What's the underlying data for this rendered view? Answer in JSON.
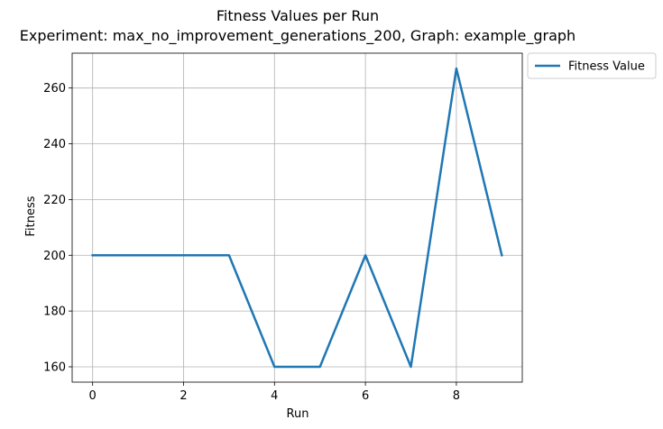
{
  "chart_data": {
    "type": "line",
    "title": "Fitness Values per Run",
    "subtitle": "Experiment: max_no_improvement_generations_200, Graph: example_graph",
    "xlabel": "Run",
    "ylabel": "Fitness",
    "x": [
      0,
      1,
      2,
      3,
      4,
      5,
      6,
      7,
      8,
      9
    ],
    "series": [
      {
        "name": "Fitness Value",
        "color": "#1f77b4",
        "values": [
          200,
          200,
          200,
          200,
          160,
          160,
          200,
          160,
          267,
          200
        ]
      }
    ],
    "xlim": [
      -0.45,
      9.45
    ],
    "ylim": [
      154.5,
      272.5
    ],
    "xticks": [
      0,
      2,
      4,
      6,
      8
    ],
    "yticks": [
      160,
      180,
      200,
      220,
      240,
      260
    ],
    "grid": true,
    "legend_position": "outside top-right"
  }
}
